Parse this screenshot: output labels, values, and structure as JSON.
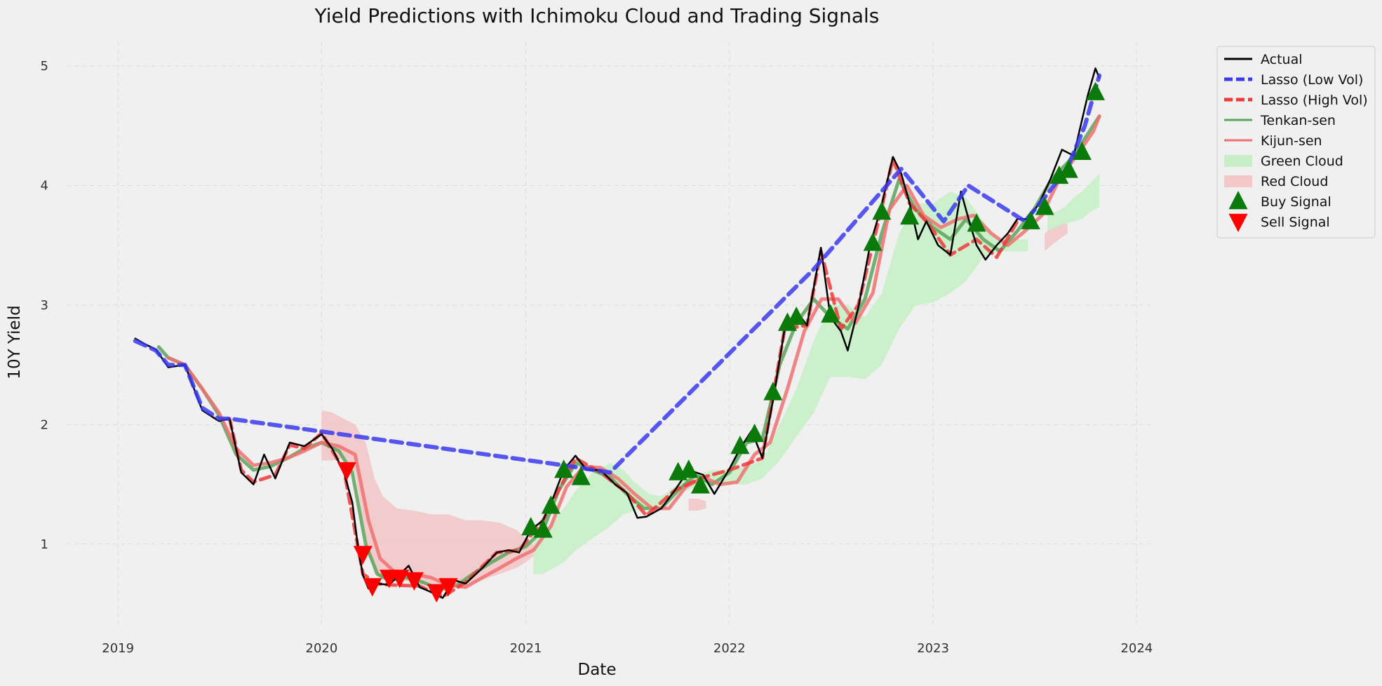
{
  "chart_data": {
    "type": "line",
    "title": "Yield Predictions with Ichimoku Cloud and Trading Signals",
    "xlabel": "Date",
    "ylabel": "10Y Yield",
    "xlim": [
      "2018-10-01",
      "2024-02-01"
    ],
    "ylim": [
      0.33,
      5.2
    ],
    "x_ticks": [
      "2019-01-01",
      "2020-01-01",
      "2021-01-01",
      "2022-01-01",
      "2023-01-01",
      "2024-01-01"
    ],
    "x_tick_labels": [
      "2019",
      "2020",
      "2021",
      "2022",
      "2023",
      "2024"
    ],
    "y_ticks": [
      1,
      2,
      3,
      4,
      5
    ],
    "y_tick_labels": [
      "1",
      "2",
      "3",
      "4",
      "5"
    ],
    "grid": true,
    "legend_position": "outside-top-right",
    "colors": {
      "actual": "#000000",
      "lasso_low": "#3a3af0",
      "lasso_high": "#f03a3a",
      "tenkan": "#5aa55a",
      "kijun": "#f07070",
      "green_cloud": "#c8eec8",
      "red_cloud": "#f2c8c8",
      "buy": "#0a7a0a",
      "sell": "#ff0000",
      "background": "#f0f0f0",
      "grid": "#dcdcdc"
    },
    "series": [
      {
        "name": "Actual",
        "style": "solid",
        "x": [
          "2019-02-01",
          "2019-02-20",
          "2019-03-10",
          "2019-04-01",
          "2019-05-01",
          "2019-06-01",
          "2019-07-01",
          "2019-07-20",
          "2019-08-10",
          "2019-09-01",
          "2019-09-20",
          "2019-10-10",
          "2019-11-05",
          "2019-12-01",
          "2020-01-01",
          "2020-01-20",
          "2020-02-10",
          "2020-02-25",
          "2020-03-07",
          "2020-03-15",
          "2020-03-25",
          "2020-04-10",
          "2020-05-01",
          "2020-06-05",
          "2020-06-25",
          "2020-07-15",
          "2020-08-05",
          "2020-08-25",
          "2020-09-15",
          "2020-10-15",
          "2020-11-10",
          "2020-12-01",
          "2020-12-20",
          "2021-01-10",
          "2021-02-01",
          "2021-02-20",
          "2021-03-10",
          "2021-03-31",
          "2021-04-20",
          "2021-05-15",
          "2021-06-10",
          "2021-07-01",
          "2021-07-20",
          "2021-08-05",
          "2021-09-01",
          "2021-09-25",
          "2021-10-20",
          "2021-11-15",
          "2021-12-05",
          "2022-01-01",
          "2022-01-20",
          "2022-02-10",
          "2022-03-01",
          "2022-03-20",
          "2022-04-10",
          "2022-05-01",
          "2022-05-20",
          "2022-06-14",
          "2022-07-01",
          "2022-07-20",
          "2022-08-01",
          "2022-08-20",
          "2022-09-10",
          "2022-09-30",
          "2022-10-21",
          "2022-11-05",
          "2022-11-20",
          "2022-12-05",
          "2022-12-20",
          "2023-01-10",
          "2023-02-01",
          "2023-02-20",
          "2023-03-08",
          "2023-03-20",
          "2023-04-05",
          "2023-04-25",
          "2023-05-15",
          "2023-06-01",
          "2023-06-20",
          "2023-07-10",
          "2023-07-30",
          "2023-08-20",
          "2023-09-10",
          "2023-09-25",
          "2023-10-05",
          "2023-10-19",
          "2023-10-26"
        ],
        "y": [
          2.72,
          2.67,
          2.63,
          2.48,
          2.5,
          2.12,
          2.03,
          2.05,
          1.6,
          1.5,
          1.75,
          1.55,
          1.85,
          1.82,
          1.92,
          1.8,
          1.6,
          1.35,
          0.95,
          0.74,
          0.63,
          0.67,
          0.66,
          0.82,
          0.64,
          0.6,
          0.55,
          0.7,
          0.67,
          0.8,
          0.93,
          0.95,
          0.93,
          1.12,
          1.2,
          1.4,
          1.62,
          1.74,
          1.62,
          1.62,
          1.5,
          1.43,
          1.22,
          1.23,
          1.3,
          1.45,
          1.62,
          1.58,
          1.42,
          1.63,
          1.8,
          1.95,
          1.72,
          2.2,
          2.8,
          2.95,
          2.83,
          3.48,
          2.9,
          2.78,
          2.62,
          2.98,
          3.5,
          3.82,
          4.24,
          4.1,
          3.85,
          3.55,
          3.7,
          3.5,
          3.42,
          3.95,
          3.68,
          3.5,
          3.38,
          3.5,
          3.6,
          3.72,
          3.72,
          3.85,
          4.05,
          4.3,
          4.25,
          4.55,
          4.75,
          4.98,
          4.9
        ]
      },
      {
        "name": "Lasso (Low Vol)",
        "style": "dashed",
        "x": [
          "2019-02-01",
          "2019-02-20",
          "2019-03-10",
          "2019-04-01",
          "2019-05-01",
          "2019-06-01",
          "2019-07-01",
          "2019-07-20",
          "2021-03-10",
          "2021-06-01",
          "2022-06-01",
          "2022-11-05",
          "2023-01-20",
          "2023-03-05",
          "2023-06-15",
          "2023-07-20",
          "2023-08-30",
          "2023-09-30",
          "2023-10-26"
        ],
        "y": [
          2.7,
          2.66,
          2.62,
          2.5,
          2.5,
          2.14,
          2.05,
          2.05,
          1.66,
          1.6,
          3.3,
          4.14,
          3.7,
          4.0,
          3.7,
          3.9,
          4.15,
          4.5,
          4.92
        ]
      },
      {
        "name": "Lasso (High Vol)",
        "style": "dashed",
        "x": [
          "2019-07-20",
          "2019-08-10",
          "2019-09-01",
          "2019-10-10",
          "2019-11-05",
          "2019-12-01",
          "2020-01-01",
          "2020-02-10",
          "2020-03-15",
          "2020-04-10",
          "2020-05-01",
          "2020-06-25",
          "2020-08-05",
          "2020-09-15",
          "2020-11-10",
          "2020-12-20",
          "2021-02-01",
          "2021-03-31",
          "2021-05-15",
          "2021-07-01",
          "2021-08-05",
          "2021-09-25",
          "2021-11-15",
          "2022-01-01",
          "2022-03-01",
          "2022-04-10",
          "2022-05-20",
          "2022-06-14",
          "2022-07-20",
          "2022-08-20",
          "2022-09-30",
          "2022-10-21",
          "2022-11-20",
          "2022-12-20",
          "2023-02-01",
          "2023-03-20",
          "2023-04-25",
          "2023-06-01"
        ],
        "y": [
          2.05,
          1.62,
          1.52,
          1.58,
          1.83,
          1.8,
          1.93,
          1.62,
          0.75,
          0.67,
          0.66,
          0.65,
          0.56,
          0.68,
          0.93,
          0.95,
          1.2,
          1.72,
          1.6,
          1.43,
          1.24,
          1.45,
          1.56,
          1.62,
          1.72,
          2.8,
          2.83,
          3.45,
          2.8,
          3.0,
          3.8,
          4.22,
          3.85,
          3.7,
          3.42,
          3.55,
          3.4,
          3.7
        ]
      },
      {
        "name": "Tenkan-sen",
        "style": "solid",
        "x": [
          "2019-03-15",
          "2019-04-01",
          "2019-05-01",
          "2019-06-01",
          "2019-07-01",
          "2019-08-01",
          "2019-09-01",
          "2019-10-01",
          "2019-11-01",
          "2019-12-01",
          "2020-01-01",
          "2020-02-01",
          "2020-02-25",
          "2020-03-20",
          "2020-04-10",
          "2020-05-01",
          "2020-06-01",
          "2020-07-01",
          "2020-08-01",
          "2020-09-01",
          "2020-10-01",
          "2020-11-01",
          "2020-12-01",
          "2021-01-01",
          "2021-02-01",
          "2021-03-01",
          "2021-04-01",
          "2021-05-01",
          "2021-06-01",
          "2021-07-01",
          "2021-08-01",
          "2021-09-01",
          "2021-10-01",
          "2021-11-01",
          "2021-12-01",
          "2022-01-01",
          "2022-02-01",
          "2022-03-01",
          "2022-04-01",
          "2022-05-01",
          "2022-06-01",
          "2022-07-01",
          "2022-08-01",
          "2022-09-01",
          "2022-10-01",
          "2022-11-01",
          "2022-12-01",
          "2023-01-01",
          "2023-02-01",
          "2023-03-01",
          "2023-04-01",
          "2023-05-01",
          "2023-06-01",
          "2023-07-01",
          "2023-08-01",
          "2023-09-01",
          "2023-10-01",
          "2023-10-26"
        ],
        "y": [
          2.65,
          2.56,
          2.5,
          2.3,
          2.08,
          1.75,
          1.62,
          1.65,
          1.72,
          1.8,
          1.85,
          1.78,
          1.6,
          1.0,
          0.75,
          0.7,
          0.72,
          0.68,
          0.62,
          0.66,
          0.76,
          0.85,
          0.93,
          0.98,
          1.12,
          1.45,
          1.68,
          1.62,
          1.56,
          1.42,
          1.3,
          1.3,
          1.45,
          1.58,
          1.5,
          1.6,
          1.85,
          1.88,
          2.5,
          2.85,
          3.05,
          2.9,
          2.8,
          3.05,
          3.6,
          4.05,
          3.8,
          3.65,
          3.55,
          3.72,
          3.55,
          3.45,
          3.62,
          3.8,
          4.05,
          4.2,
          4.4,
          4.58
        ]
      },
      {
        "name": "Kijun-sen",
        "style": "solid",
        "x": [
          "2019-04-01",
          "2019-05-01",
          "2019-06-01",
          "2019-07-01",
          "2019-08-01",
          "2019-09-01",
          "2019-10-01",
          "2019-11-01",
          "2019-12-01",
          "2020-01-01",
          "2020-02-01",
          "2020-03-01",
          "2020-03-25",
          "2020-04-15",
          "2020-05-15",
          "2020-06-15",
          "2020-07-15",
          "2020-08-15",
          "2020-09-15",
          "2020-10-15",
          "2020-11-15",
          "2020-12-15",
          "2021-01-15",
          "2021-02-15",
          "2021-03-15",
          "2021-04-15",
          "2021-05-15",
          "2021-06-15",
          "2021-07-15",
          "2021-08-15",
          "2021-09-15",
          "2021-10-15",
          "2021-11-15",
          "2021-12-15",
          "2022-01-15",
          "2022-02-15",
          "2022-03-15",
          "2022-04-15",
          "2022-05-15",
          "2022-06-15",
          "2022-07-15",
          "2022-08-15",
          "2022-09-15",
          "2022-10-15",
          "2022-11-15",
          "2022-12-15",
          "2023-01-15",
          "2023-02-15",
          "2023-03-15",
          "2023-04-15",
          "2023-05-15",
          "2023-06-15",
          "2023-07-15",
          "2023-08-15",
          "2023-09-15",
          "2023-10-15",
          "2023-10-26"
        ],
        "y": [
          2.56,
          2.5,
          2.3,
          2.1,
          1.8,
          1.66,
          1.68,
          1.72,
          1.78,
          1.85,
          1.82,
          1.75,
          1.2,
          0.88,
          0.75,
          0.75,
          0.72,
          0.66,
          0.64,
          0.72,
          0.8,
          0.88,
          0.95,
          1.15,
          1.48,
          1.65,
          1.64,
          1.55,
          1.42,
          1.3,
          1.3,
          1.48,
          1.56,
          1.5,
          1.52,
          1.75,
          1.85,
          2.3,
          2.78,
          3.05,
          3.05,
          2.85,
          3.1,
          3.8,
          4.0,
          3.75,
          3.65,
          3.72,
          3.75,
          3.6,
          3.5,
          3.62,
          3.75,
          4.05,
          4.25,
          4.45,
          4.58
        ]
      }
    ],
    "green_cloud": [
      {
        "x": [
          "2021-01-15",
          "2021-02-01",
          "2021-02-20",
          "2021-03-10",
          "2021-04-01",
          "2021-05-01",
          "2021-06-01",
          "2021-06-25",
          "2021-07-15",
          "2021-08-10",
          "2021-09-01",
          "2021-10-01",
          "2021-11-01",
          "2021-12-01",
          "2022-01-01",
          "2022-02-01",
          "2022-03-01",
          "2022-04-01",
          "2022-05-01",
          "2022-06-01",
          "2022-07-01",
          "2022-08-01",
          "2022-09-01",
          "2022-10-01",
          "2022-11-01",
          "2022-12-01",
          "2023-01-01",
          "2023-02-01",
          "2023-03-01",
          "2023-04-01",
          "2023-05-01",
          "2023-06-01",
          "2023-06-20"
        ],
        "upper": [
          1.05,
          1.1,
          1.2,
          1.3,
          1.45,
          1.6,
          1.68,
          1.62,
          1.52,
          1.42,
          1.4,
          1.5,
          1.58,
          1.62,
          1.62,
          1.65,
          1.7,
          2.0,
          2.3,
          2.7,
          3.0,
          3.0,
          2.9,
          3.1,
          3.6,
          3.85,
          3.85,
          3.95,
          3.9,
          3.7,
          3.55,
          3.55,
          3.55
        ],
        "lower": [
          0.75,
          0.75,
          0.8,
          0.85,
          0.95,
          1.05,
          1.15,
          1.25,
          1.28,
          1.3,
          1.3,
          1.42,
          1.48,
          1.5,
          1.5,
          1.5,
          1.55,
          1.7,
          1.9,
          2.1,
          2.4,
          2.4,
          2.38,
          2.5,
          2.8,
          3.0,
          3.02,
          3.1,
          3.2,
          3.4,
          3.45,
          3.45,
          3.45
        ]
      },
      {
        "x": [
          "2023-07-25",
          "2023-08-10",
          "2023-08-25",
          "2023-09-10",
          "2023-09-25",
          "2023-10-10",
          "2023-10-26"
        ],
        "upper": [
          3.75,
          3.78,
          3.82,
          3.9,
          3.95,
          4.02,
          4.1
        ],
        "lower": [
          3.62,
          3.65,
          3.68,
          3.7,
          3.72,
          3.78,
          3.82
        ]
      }
    ],
    "red_cloud": [
      {
        "x": [
          "2020-01-01",
          "2020-01-20",
          "2020-02-10",
          "2020-03-01",
          "2020-03-20",
          "2020-04-05",
          "2020-04-20",
          "2020-05-15",
          "2020-06-15",
          "2020-07-15",
          "2020-08-15",
          "2020-09-15",
          "2020-10-15",
          "2020-11-15",
          "2020-12-15",
          "2021-01-01",
          "2021-01-15"
        ],
        "upper": [
          2.12,
          2.1,
          2.05,
          2.0,
          1.85,
          1.55,
          1.4,
          1.3,
          1.28,
          1.25,
          1.25,
          1.2,
          1.2,
          1.18,
          1.12,
          1.05,
          1.0
        ],
        "lower": [
          1.7,
          1.7,
          1.72,
          1.6,
          1.05,
          0.75,
          0.7,
          0.7,
          0.68,
          0.65,
          0.63,
          0.65,
          0.7,
          0.75,
          0.8,
          0.85,
          0.9
        ]
      },
      {
        "x": [
          "2021-10-20",
          "2021-11-05",
          "2021-11-20"
        ],
        "upper": [
          1.38,
          1.38,
          1.36
        ],
        "lower": [
          1.28,
          1.28,
          1.3
        ]
      },
      {
        "x": [
          "2023-07-20",
          "2023-08-01",
          "2023-08-15",
          "2023-08-30"
        ],
        "upper": [
          3.6,
          3.65,
          3.68,
          3.68
        ],
        "lower": [
          3.45,
          3.5,
          3.55,
          3.6
        ]
      }
    ],
    "buy_signals": {
      "x": [
        "2021-01-10",
        "2021-02-01",
        "2021-02-15",
        "2021-03-10",
        "2021-04-10",
        "2021-10-01",
        "2021-10-20",
        "2021-11-10",
        "2022-01-20",
        "2022-02-15",
        "2022-03-20",
        "2022-04-15",
        "2022-05-01",
        "2022-07-01",
        "2022-09-15",
        "2022-10-01",
        "2022-11-20",
        "2023-03-20",
        "2023-06-25",
        "2023-07-20",
        "2023-08-15",
        "2023-09-01",
        "2023-09-25",
        "2023-10-19"
      ],
      "y": [
        1.14,
        1.12,
        1.32,
        1.62,
        1.56,
        1.6,
        1.62,
        1.49,
        1.82,
        1.92,
        2.27,
        2.85,
        2.9,
        2.92,
        3.52,
        3.78,
        3.74,
        3.68,
        3.7,
        3.82,
        4.08,
        4.13,
        4.28,
        4.78
      ]
    },
    "sell_signals": {
      "x": [
        "2020-02-15",
        "2020-03-15",
        "2020-04-01",
        "2020-05-01",
        "2020-05-20",
        "2020-06-15",
        "2020-07-25",
        "2020-08-15"
      ],
      "y": [
        1.62,
        0.92,
        0.65,
        0.72,
        0.72,
        0.7,
        0.6,
        0.65
      ]
    },
    "legend": [
      {
        "label": "Actual",
        "kind": "line",
        "color": "#000000",
        "dash": "none"
      },
      {
        "label": "Lasso (Low Vol)",
        "kind": "line",
        "color": "#3a3af0",
        "dash": "dashed"
      },
      {
        "label": "Lasso (High Vol)",
        "kind": "line",
        "color": "#f03a3a",
        "dash": "dashed"
      },
      {
        "label": "Tenkan-sen",
        "kind": "line",
        "color": "#5aa55a",
        "dash": "none"
      },
      {
        "label": "Kijun-sen",
        "kind": "line",
        "color": "#f07070",
        "dash": "none"
      },
      {
        "label": "Green Cloud",
        "kind": "patch",
        "color": "#c8eec8",
        "dash": "none"
      },
      {
        "label": "Red Cloud",
        "kind": "patch",
        "color": "#f2c8c8",
        "dash": "none"
      },
      {
        "label": "Buy Signal",
        "kind": "up-triangle",
        "color": "#0a7a0a",
        "dash": "none"
      },
      {
        "label": "Sell Signal",
        "kind": "down-triangle",
        "color": "#ff0000",
        "dash": "none"
      }
    ]
  }
}
